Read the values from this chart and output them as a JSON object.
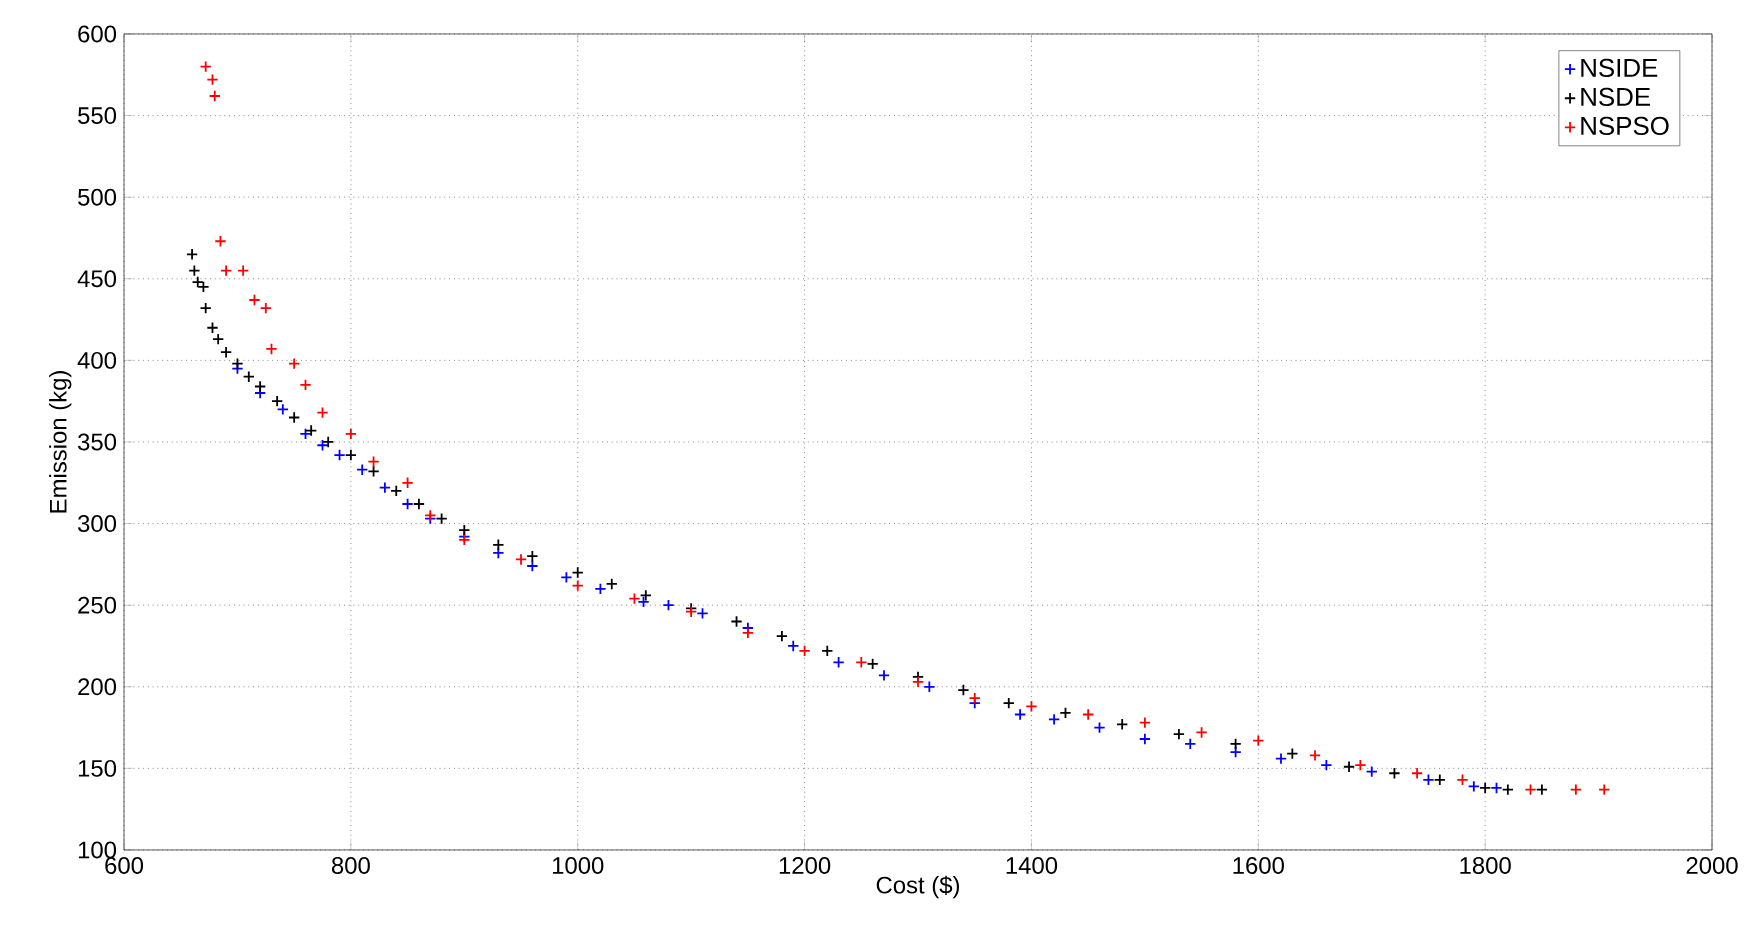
{
  "chart_data": {
    "type": "scatter",
    "xlabel": "Cost ($)",
    "ylabel": "Emission (kg)",
    "xlim": [
      600,
      2000
    ],
    "ylim": [
      100,
      600
    ],
    "xticks": [
      600,
      800,
      1000,
      1200,
      1400,
      1600,
      1800,
      2000
    ],
    "yticks": [
      100,
      150,
      200,
      250,
      300,
      350,
      400,
      450,
      500,
      550,
      600
    ],
    "grid": true,
    "legend": "top right",
    "marker": "cross",
    "series": [
      {
        "name": "NSIDE",
        "color": "#0000ff",
        "x": [
          700,
          720,
          740,
          760,
          775,
          790,
          810,
          830,
          850,
          870,
          900,
          930,
          960,
          990,
          1020,
          1058,
          1080,
          1110,
          1150,
          1190,
          1230,
          1270,
          1310,
          1350,
          1390,
          1420,
          1460,
          1500,
          1540,
          1580,
          1620,
          1660,
          1700,
          1750,
          1790,
          1810
        ],
        "values": [
          395,
          380,
          370,
          355,
          348,
          342,
          333,
          322,
          312,
          303,
          292,
          282,
          274,
          267,
          260,
          252,
          250,
          245,
          236,
          225,
          215,
          207,
          200,
          190,
          183,
          180,
          175,
          168,
          165,
          160,
          156,
          152,
          148,
          143,
          139,
          138
        ]
      },
      {
        "name": "NSDE",
        "color": "#000000",
        "x": [
          660,
          662,
          665,
          670,
          672,
          678,
          683,
          690,
          700,
          710,
          720,
          735,
          750,
          765,
          780,
          800,
          820,
          840,
          860,
          880,
          900,
          930,
          960,
          1000,
          1030,
          1060,
          1100,
          1140,
          1180,
          1220,
          1260,
          1300,
          1340,
          1380,
          1430,
          1480,
          1530,
          1580,
          1630,
          1680,
          1720,
          1760,
          1800,
          1820,
          1850
        ],
        "values": [
          465,
          455,
          448,
          445,
          432,
          420,
          413,
          405,
          398,
          390,
          384,
          375,
          365,
          357,
          350,
          342,
          332,
          320,
          312,
          303,
          296,
          287,
          280,
          270,
          263,
          256,
          248,
          240,
          231,
          222,
          214,
          206,
          198,
          190,
          184,
          177,
          171,
          165,
          159,
          151,
          147,
          143,
          138,
          137,
          137
        ]
      },
      {
        "name": "NSPSO",
        "color": "#ff0000",
        "x": [
          672,
          678,
          680,
          685,
          690,
          705,
          715,
          725,
          730,
          750,
          760,
          775,
          800,
          820,
          850,
          870,
          900,
          950,
          1000,
          1050,
          1100,
          1150,
          1200,
          1250,
          1300,
          1350,
          1400,
          1450,
          1500,
          1550,
          1600,
          1650,
          1690,
          1740,
          1780,
          1840,
          1880,
          1905
        ],
        "values": [
          580,
          572,
          562,
          473,
          455,
          455,
          437,
          432,
          407,
          398,
          385,
          368,
          355,
          338,
          325,
          305,
          290,
          278,
          262,
          254,
          246,
          233,
          222,
          215,
          203,
          193,
          188,
          183,
          178,
          172,
          167,
          158,
          152,
          147,
          143,
          137,
          137,
          137
        ]
      }
    ]
  }
}
